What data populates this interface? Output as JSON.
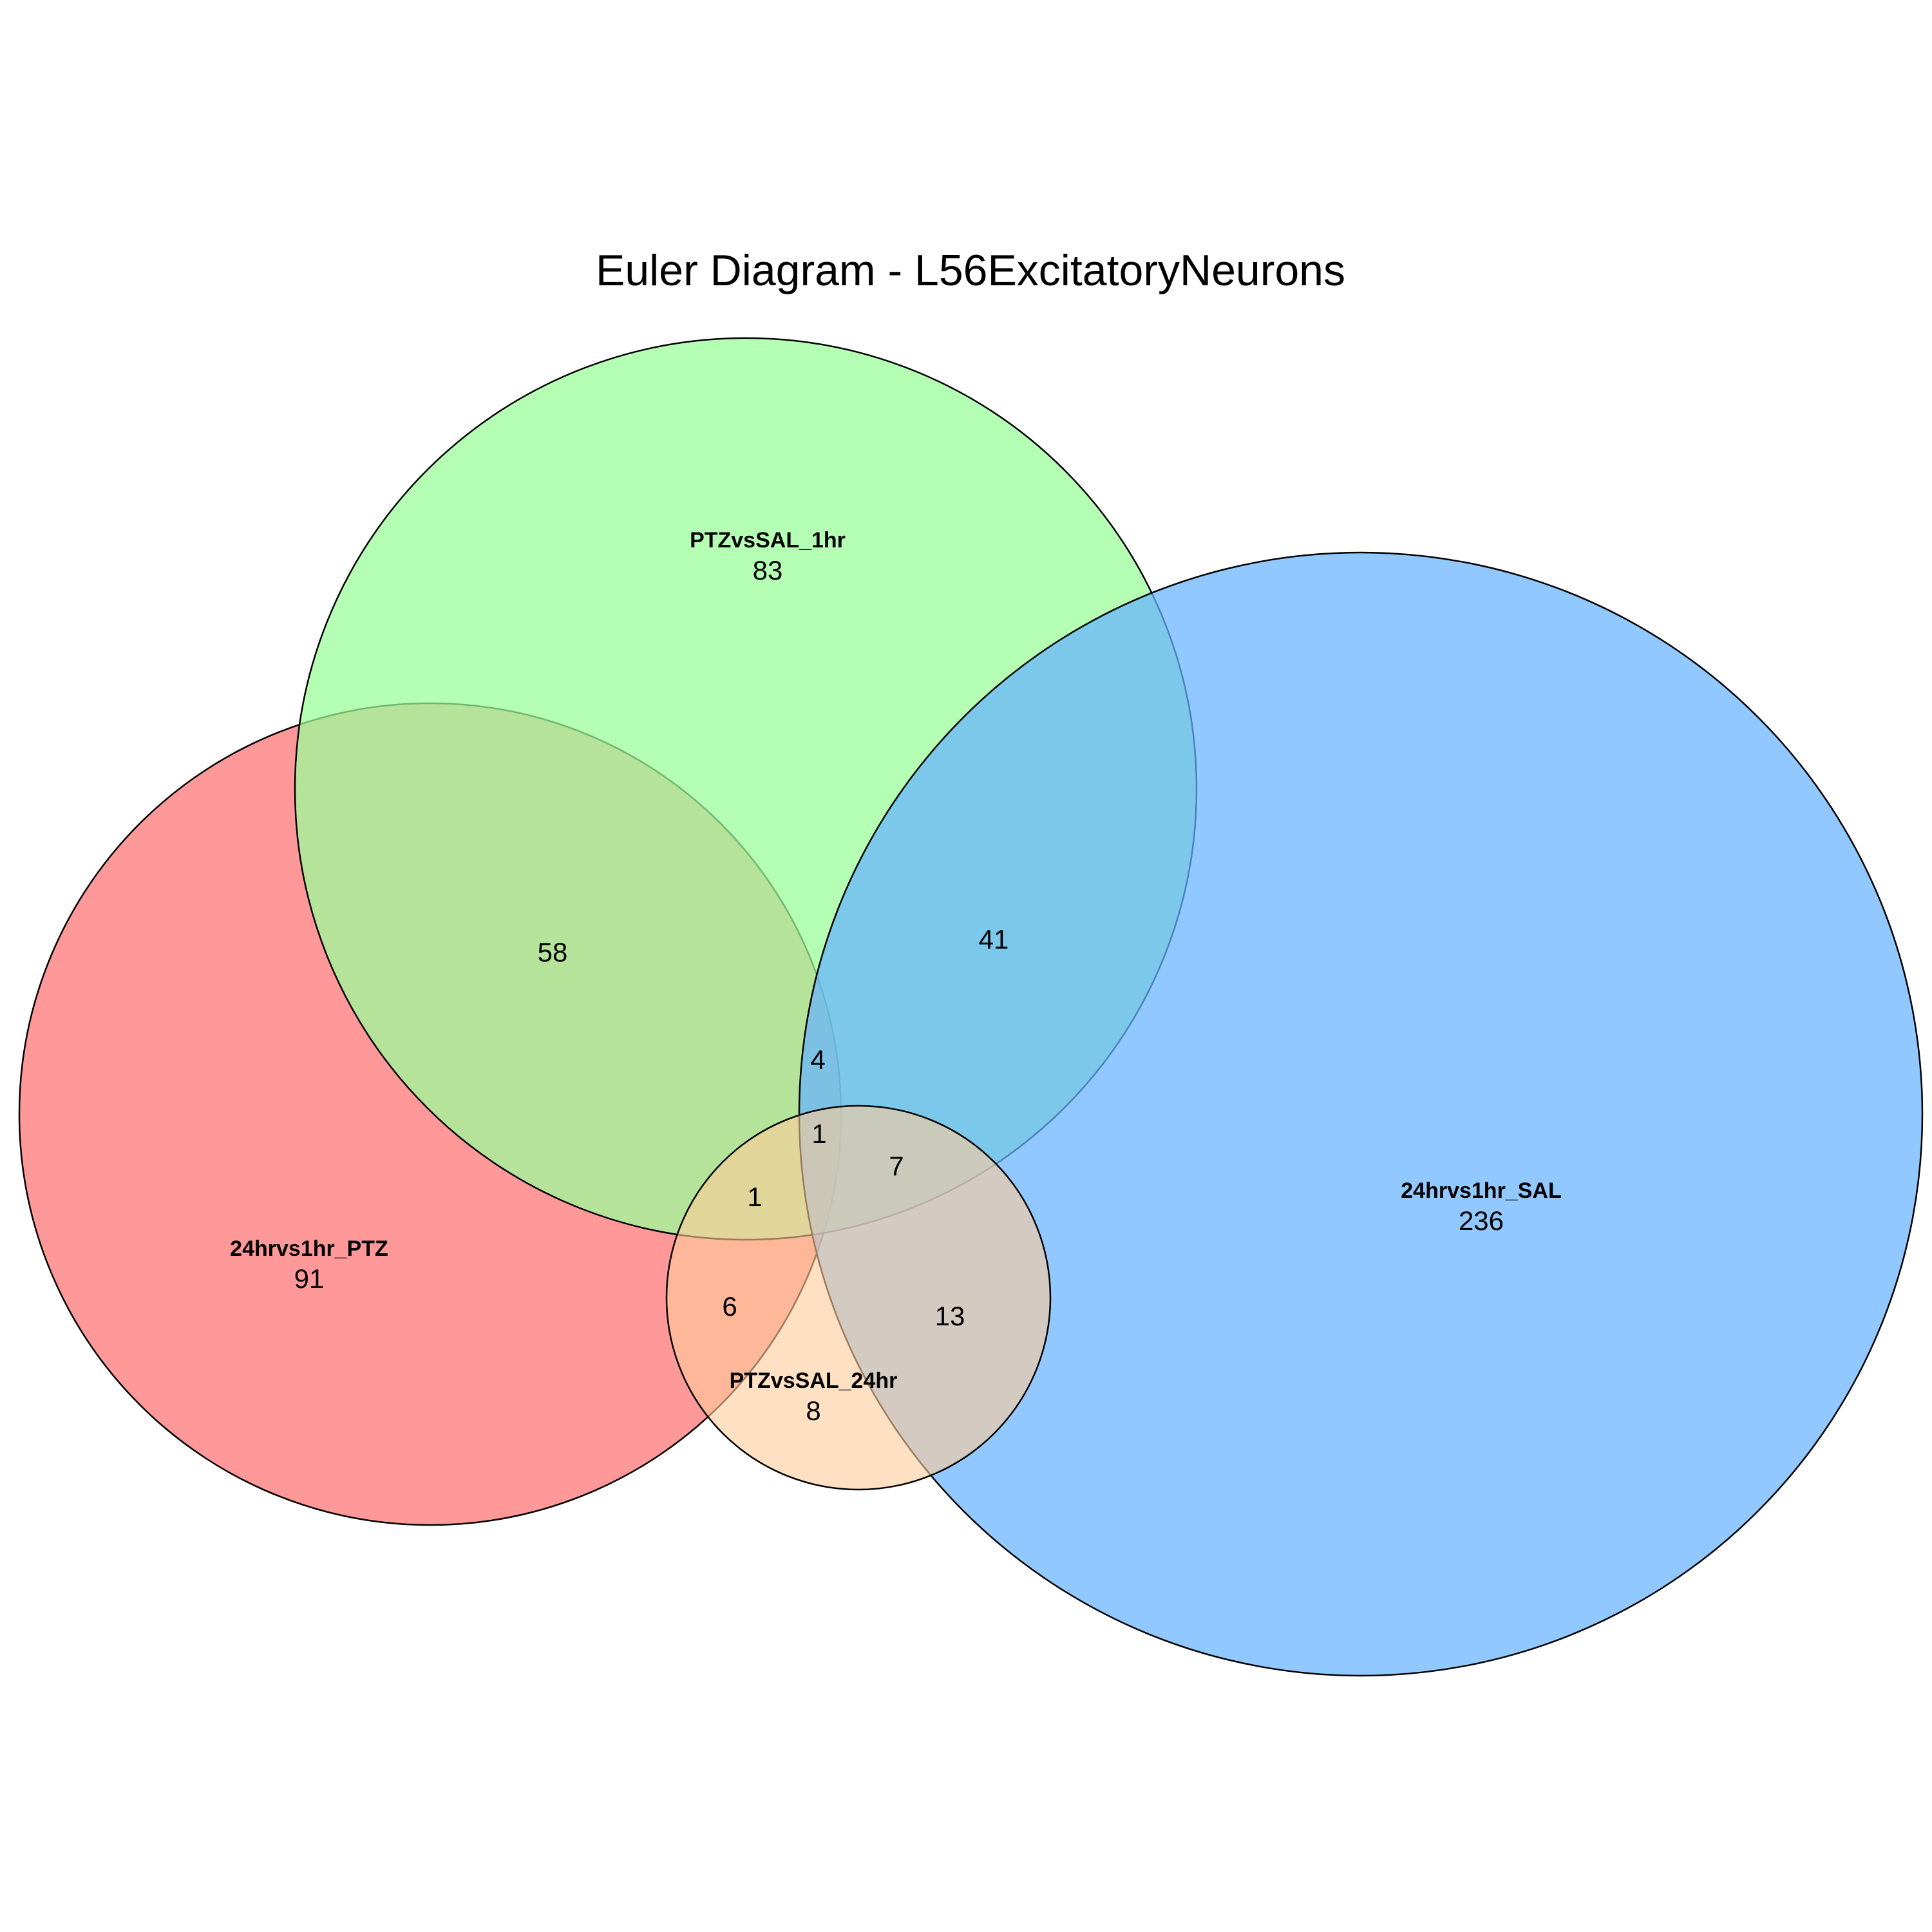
{
  "title": "Euler Diagram - L56ExcitatoryNeurons",
  "sets": [
    {
      "id": "ptz24",
      "label": "24hrvs1hr_PTZ",
      "only_count": "91",
      "color": "#ff9999"
    },
    {
      "id": "ptz1",
      "label": "PTZvsSAL_1hr",
      "only_count": "83",
      "color": "#99ff99"
    },
    {
      "id": "sal24",
      "label": "24hrvs1hr_SAL",
      "only_count": "236",
      "color": "#66b3ff"
    },
    {
      "id": "ptzsal24",
      "label": "PTZvsSAL_24hr",
      "only_count": "8",
      "color": "#ffcc99"
    }
  ],
  "intersections": [
    {
      "sets": [
        "24hrvs1hr_PTZ",
        "PTZvsSAL_1hr"
      ],
      "count": "58"
    },
    {
      "sets": [
        "PTZvsSAL_1hr",
        "24hrvs1hr_SAL"
      ],
      "count": "41"
    },
    {
      "sets": [
        "24hrvs1hr_PTZ",
        "PTZvsSAL_1hr",
        "24hrvs1hr_SAL"
      ],
      "count": "4"
    },
    {
      "sets": [
        "24hrvs1hr_PTZ",
        "PTZvsSAL_1hr",
        "24hrvs1hr_SAL",
        "PTZvsSAL_24hr"
      ],
      "count": "1"
    },
    {
      "sets": [
        "PTZvsSAL_1hr",
        "24hrvs1hr_SAL",
        "PTZvsSAL_24hr"
      ],
      "count": "7"
    },
    {
      "sets": [
        "24hrvs1hr_PTZ",
        "PTZvsSAL_1hr",
        "PTZvsSAL_24hr"
      ],
      "count": "1"
    },
    {
      "sets": [
        "24hrvs1hr_PTZ",
        "PTZvsSAL_24hr"
      ],
      "count": "6"
    },
    {
      "sets": [
        "24hrvs1hr_SAL",
        "PTZvsSAL_24hr"
      ],
      "count": "13"
    }
  ]
}
